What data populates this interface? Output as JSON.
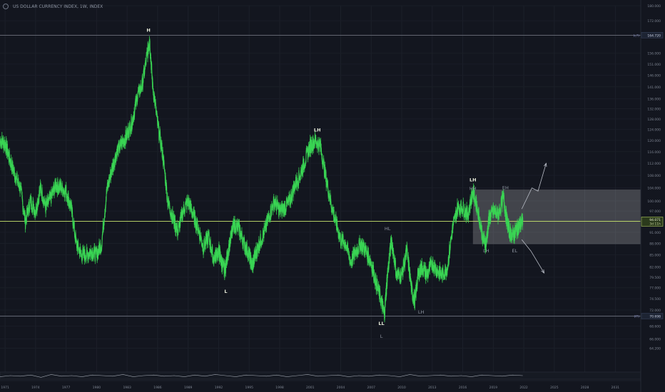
{
  "header": {
    "instrument": "US DOLLAR CURRENCY INDEX, 1W, INDEX"
  },
  "colors": {
    "background": "#13161f",
    "price_line": "#39d353",
    "zone": "#ffffff",
    "level_line": "#7b7f8a",
    "current_price_line": "#c9e46c",
    "label": "#c7cbd3"
  },
  "chart_data": {
    "type": "line",
    "title": "US DOLLAR CURRENCY INDEX, 1W, INDEX",
    "xlim": [
      1970.5,
      2033.5
    ],
    "ylim": [
      60.0,
      180.0
    ],
    "y_scale": "log",
    "y_ticks": [
      64.2,
      66.0,
      68.6,
      70.6,
      72.0,
      74.5,
      77.0,
      79.5,
      82.0,
      85.0,
      88.0,
      91.0,
      94.0,
      97.0,
      100.0,
      104.0,
      108.0,
      112.0,
      116.0,
      120.0,
      124.0,
      128.0,
      132.0,
      136.0,
      141.0,
      146.0,
      151.0,
      156.0,
      164.72,
      172.0,
      180.0
    ],
    "y_tick_labels": [
      "64.200",
      "66.000",
      "68.600",
      "70.600",
      "72.000",
      "74.500",
      "77.000",
      "79.500",
      "82.000",
      "85.000",
      "88.000",
      "91.000",
      "94.000",
      "97.000",
      "100.000",
      "104.000",
      "108.000",
      "112.000",
      "116.000",
      "120.000",
      "124.000",
      "128.000",
      "132.000",
      "136.000",
      "141.000",
      "146.000",
      "151.000",
      "156.000",
      "164.720",
      "172.000",
      "180.000"
    ],
    "x_ticks": [
      1971,
      1974,
      1977,
      1980,
      1983,
      1986,
      1989,
      1992,
      1995,
      1998,
      2001,
      2004,
      2007,
      2010,
      2013,
      2016,
      2019,
      2022,
      2025,
      2028,
      2031
    ],
    "x_tick_labels": [
      "1971",
      "1974",
      "1977",
      "1980",
      "1983",
      "1986",
      "1989",
      "1992",
      "1995",
      "1998",
      "2001",
      "2004",
      "2007",
      "2010",
      "2013",
      "2016",
      "2019",
      "2022",
      "2025",
      "2028",
      "2031"
    ],
    "series": [
      {
        "x": [
          1970.5,
          1971.0,
          1971.5,
          1972.0,
          1972.5,
          1973.0,
          1973.5,
          1974.0,
          1974.5,
          1975.0,
          1975.5,
          1976.0,
          1976.5,
          1977.0,
          1977.5,
          1978.0,
          1978.5,
          1979.0,
          1979.5,
          1980.0,
          1980.5,
          1981.0,
          1981.5,
          1982.0,
          1982.5,
          1983.0,
          1983.5,
          1984.0,
          1984.5,
          1985.0,
          1985.2,
          1985.5,
          1986.0,
          1986.5,
          1987.0,
          1987.5,
          1988.0,
          1988.5,
          1989.0,
          1989.5,
          1990.0,
          1990.5,
          1991.0,
          1991.5,
          1992.0,
          1992.3,
          1992.6,
          1993.0,
          1993.5,
          1994.0,
          1994.5,
          1995.0,
          1995.3,
          1995.6,
          1996.0,
          1996.5,
          1997.0,
          1997.5,
          1998.0,
          1998.5,
          1999.0,
          1999.5,
          2000.0,
          2000.5,
          2001.0,
          2001.5,
          2002.0,
          2002.5,
          2003.0,
          2003.5,
          2004.0,
          2004.5,
          2005.0,
          2005.5,
          2006.0,
          2006.5,
          2007.0,
          2007.5,
          2008.0,
          2008.3,
          2008.6,
          2009.0,
          2009.5,
          2010.0,
          2010.5,
          2011.0,
          2011.3,
          2011.6,
          2012.0,
          2012.5,
          2013.0,
          2013.5,
          2014.0,
          2014.5,
          2015.0,
          2015.5,
          2016.0,
          2016.5,
          2017.0,
          2017.5,
          2018.0,
          2018.3,
          2018.6,
          2019.0,
          2019.5,
          2020.0,
          2020.3,
          2020.6,
          2021.0,
          2021.3,
          2021.6,
          2021.9
        ],
        "y": [
          120,
          119,
          113,
          108,
          104,
          94,
          100,
          97,
          104,
          98,
          101,
          105,
          104,
          103,
          98,
          88,
          85,
          85,
          86,
          85,
          88,
          103,
          110,
          116,
          119,
          122,
          127,
          137,
          142,
          156,
          163,
          142,
          126,
          115,
          100,
          95,
          91,
          97,
          100,
          96,
          92,
          87,
          90,
          84,
          86,
          83,
          81,
          87,
          93,
          92,
          88,
          85,
          82,
          85,
          88,
          91,
          96,
          100,
          97,
          98,
          100,
          105,
          108,
          113,
          118,
          120,
          118,
          108,
          100,
          94,
          89,
          88,
          83,
          86,
          88,
          86,
          83,
          78,
          74,
          71,
          80,
          89,
          80,
          80,
          86,
          76,
          74,
          80,
          82,
          80,
          83,
          81,
          80,
          82,
          92,
          98,
          98,
          96,
          103,
          97,
          89,
          88,
          95,
          97,
          96,
          101,
          95,
          91,
          90,
          92,
          93,
          94.07
        ],
        "color": "#39d353"
      }
    ],
    "current_price": {
      "value": 94.071,
      "label": "94.071",
      "countdown": "3d 11h"
    },
    "levels": [
      {
        "value": 164.72,
        "tag": "(c?)",
        "label": "164.720"
      },
      {
        "value": 70.698,
        "tag": "(f?)",
        "label": "70.698"
      }
    ],
    "zone": {
      "x0": 2017.0,
      "x1": 2033.5,
      "y0": 87.8,
      "y1": 103.5
    },
    "projection_arrows": [
      {
        "points": [
          [
            2021.8,
            97.6
          ],
          [
            2022.8,
            104.0
          ],
          [
            2023.4,
            103.0
          ],
          [
            2024.2,
            112.0
          ]
        ]
      },
      {
        "points": [
          [
            2021.8,
            89.0
          ],
          [
            2022.7,
            86.0
          ],
          [
            2024.0,
            80.5
          ]
        ]
      }
    ],
    "annotations": [
      {
        "text": "H",
        "x": 1985.1,
        "y": 166.5,
        "style": "strong"
      },
      {
        "text": "L",
        "x": 1992.7,
        "y": 75.8,
        "style": "strong"
      },
      {
        "text": "LH",
        "x": 2001.7,
        "y": 123.2,
        "style": "strong"
      },
      {
        "text": "HL",
        "x": 2008.6,
        "y": 91.6,
        "style": "muted"
      },
      {
        "text": "LL",
        "x": 2008.0,
        "y": 68.8,
        "style": "strong"
      },
      {
        "text": "L",
        "x": 2008.0,
        "y": 66.2,
        "style": "muted"
      },
      {
        "text": "LH",
        "x": 2011.9,
        "y": 71.2,
        "style": "muted"
      },
      {
        "text": "LH",
        "x": 2017.0,
        "y": 106.1,
        "style": "strong"
      },
      {
        "text": "HH",
        "x": 2017.0,
        "y": 103.4,
        "style": "muted"
      },
      {
        "text": "EH",
        "x": 2020.2,
        "y": 103.6,
        "style": "muted"
      },
      {
        "text": "LH",
        "x": 2018.3,
        "y": 85.7,
        "style": "muted"
      },
      {
        "text": "EL",
        "x": 2021.1,
        "y": 85.7,
        "style": "muted"
      }
    ],
    "oscillator": {
      "x_start": 1970.5,
      "x_end": 2021.9,
      "values": [
        0.3,
        0.5,
        0.4,
        0.6,
        0.2,
        0.7,
        0.4,
        0.5,
        0.3,
        0.6,
        0.5,
        0.4,
        0.7,
        0.3,
        0.5,
        0.6,
        0.4,
        0.5,
        0.3,
        0.6,
        0.4,
        0.7,
        0.5,
        0.3,
        0.6,
        0.5,
        0.4,
        0.6,
        0.3,
        0.5,
        0.7,
        0.4,
        0.5,
        0.6,
        0.3,
        0.5,
        0.4,
        0.6,
        0.5,
        0.3,
        0.7,
        0.4,
        0.5,
        0.6,
        0.4,
        0.5,
        0.3,
        0.6,
        0.5,
        0.4,
        0.6,
        0.5
      ]
    }
  }
}
